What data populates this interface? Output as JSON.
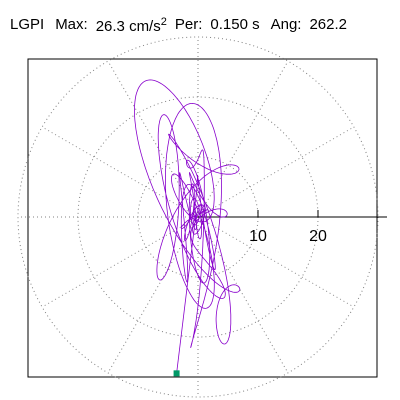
{
  "header": {
    "station": "LGPI",
    "max_label": "Max:",
    "max_value": "26.3 cm/s",
    "max_exp": "2",
    "per_label": "Per:",
    "per_value": "0.150 s",
    "ang_label": "Ang:",
    "ang_value": "262.2"
  },
  "chart_data": {
    "type": "polar-particle-motion",
    "units": "cm/s2",
    "max_amplitude": 26.3,
    "period_s": 0.15,
    "angle_deg": 262.2,
    "radial_ticks": [
      {
        "value": 10,
        "label": "10"
      },
      {
        "value": 20,
        "label": "20"
      }
    ],
    "grid_rings": [
      10,
      20,
      30
    ],
    "spoke_step_deg": 30,
    "trace_color": "#8800cc",
    "peak_marker_color": "#009966",
    "grid_dotted": true
  }
}
